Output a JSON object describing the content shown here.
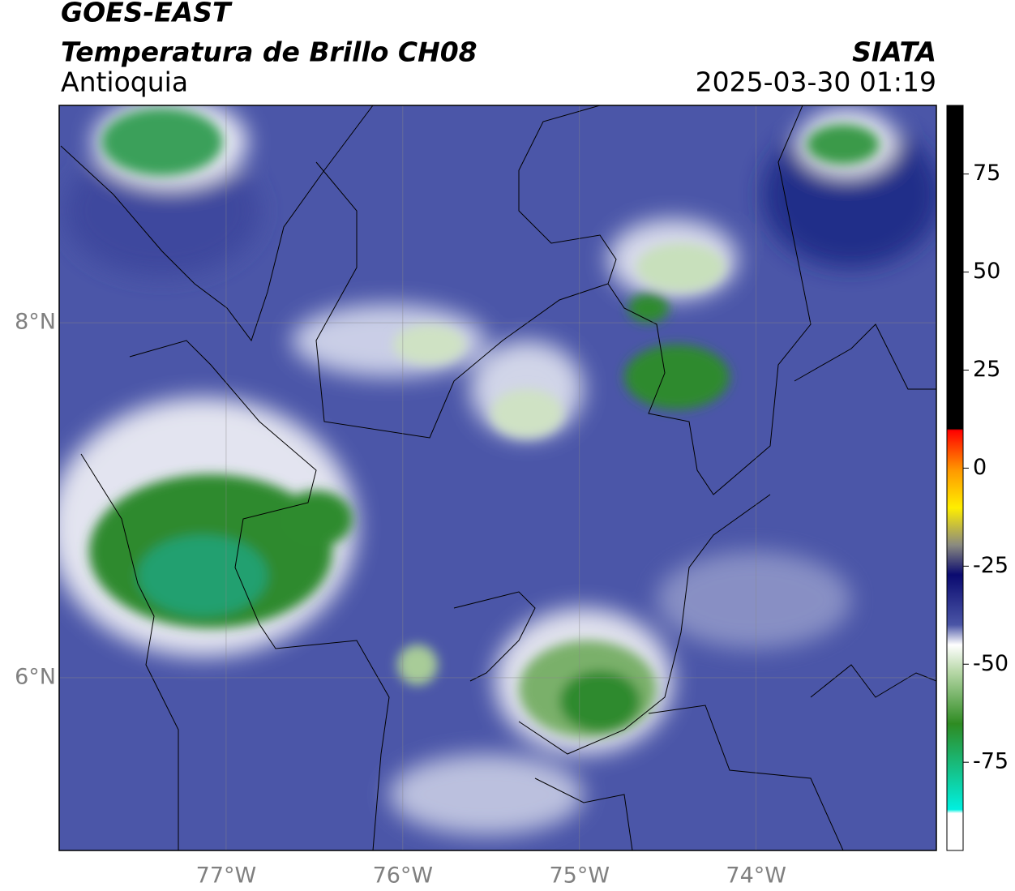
{
  "header": {
    "source": "GOES-EAST",
    "product": "Temperatura de Brillo CH08",
    "region": "Antioquia",
    "agency": "SIATA",
    "datetime": "2025-03-30 01:19"
  },
  "map": {
    "xlim": [
      -77.945,
      -72.98
    ],
    "ylim": [
      5.027,
      9.224
    ],
    "xticks": [
      {
        "value": -77,
        "label": "77°W"
      },
      {
        "value": -76,
        "label": "76°W"
      },
      {
        "value": -75,
        "label": "75°W"
      },
      {
        "value": -74,
        "label": "74°W"
      }
    ],
    "yticks": [
      {
        "value": 8,
        "label": "8°N"
      },
      {
        "value": 6,
        "label": "6°N"
      }
    ],
    "grid": true
  },
  "colorbar": {
    "lim": [
      -97.5,
      92.5
    ],
    "ticks": [
      75,
      50,
      25,
      0,
      -25,
      -50,
      -75
    ]
  }
}
